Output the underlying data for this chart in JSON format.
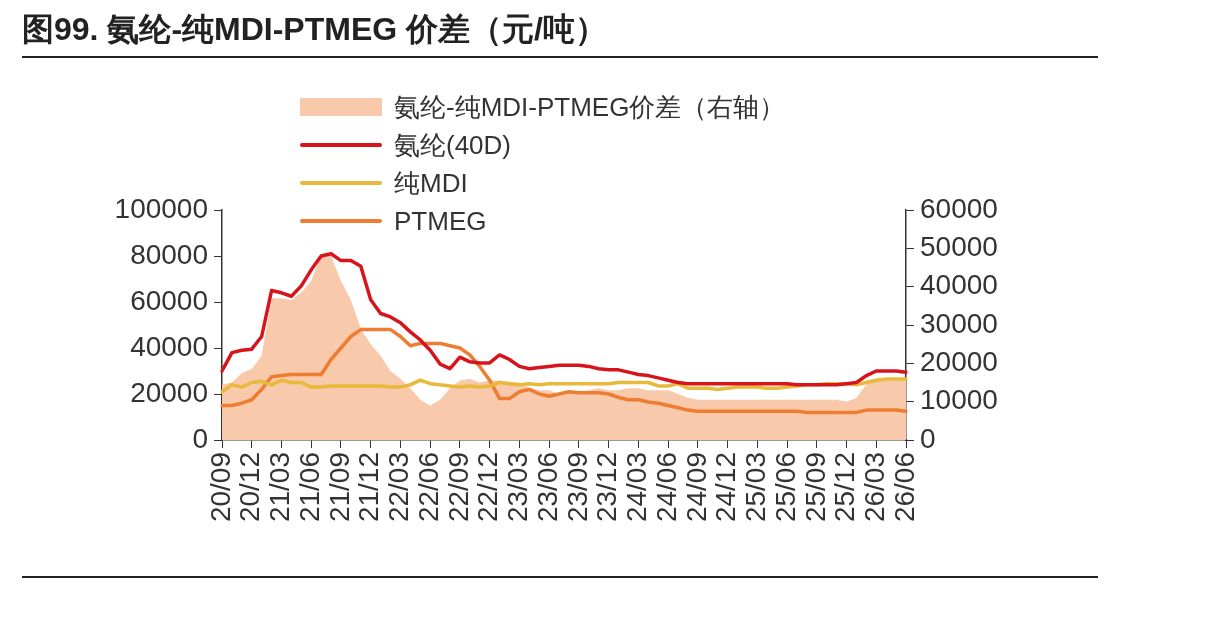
{
  "chart_data": {
    "type": "line",
    "title": "图99. 氨纶-纯MDI-PTMEG 价差（元/吨）",
    "categories": [
      "20/09",
      null,
      null,
      "20/12",
      null,
      null,
      "21/03",
      null,
      null,
      "21/06",
      null,
      null,
      "21/09",
      null,
      null,
      "21/12",
      null,
      null,
      "22/03",
      null,
      null,
      "22/06",
      null,
      null,
      "22/09",
      null,
      null,
      "22/12",
      null,
      null,
      "23/03",
      null,
      null,
      "23/06",
      null,
      null,
      "23/09",
      null,
      null,
      "23/12",
      null,
      null,
      "24/03",
      null,
      null,
      "24/06",
      null,
      null,
      "24/09",
      null,
      null,
      "24/12",
      null,
      null,
      "25/03",
      null,
      null,
      "25/06",
      null,
      null,
      "25/09",
      null,
      null,
      "25/12",
      null,
      null,
      "26/03",
      null,
      null,
      "26/06"
    ],
    "series": [
      {
        "name": "氨纶-纯MDI-PTMEG价差（右轴）",
        "type": "area",
        "axis": "y2",
        "color": "#f8c9ab",
        "values": [
          14500,
          15000,
          17500,
          18500,
          22000,
          37000,
          37000,
          36500,
          38500,
          41500,
          48500,
          48000,
          41500,
          36500,
          29000,
          25000,
          22000,
          18000,
          16000,
          13500,
          10500,
          9000,
          10500,
          13500,
          15500,
          16000,
          15000,
          15500,
          15500,
          15000,
          15000,
          13500,
          13000,
          13000,
          12000,
          12500,
          12500,
          13000,
          13500,
          13000,
          13000,
          13500,
          13500,
          13000,
          13000,
          13000,
          12000,
          11000,
          10500,
          10500,
          10500,
          10500,
          10500,
          10500,
          10500,
          10500,
          10500,
          10500,
          10500,
          10500,
          10500,
          10500,
          10500,
          10000,
          11000,
          14500,
          15500,
          16000,
          16000,
          16000
        ]
      },
      {
        "name": "氨纶(40D)",
        "type": "line",
        "color": "#d7141c",
        "values": [
          30000,
          38000,
          39000,
          39500,
          45000,
          65000,
          64000,
          62500,
          67000,
          74000,
          80000,
          81000,
          78000,
          78000,
          75500,
          61000,
          55000,
          53500,
          51000,
          47000,
          43500,
          39000,
          33000,
          31000,
          36000,
          34000,
          33500,
          33500,
          37000,
          35000,
          32000,
          31000,
          31500,
          32000,
          32500,
          32500,
          32500,
          32000,
          31000,
          30500,
          30500,
          29500,
          28500,
          28000,
          27000,
          26000,
          25000,
          24500,
          24500,
          24500,
          24500,
          24500,
          24500,
          24500,
          24500,
          24500,
          24500,
          24500,
          24000,
          24000,
          24000,
          24000,
          24000,
          24500,
          25000,
          28000,
          30000,
          30000,
          30000,
          29500
        ]
      },
      {
        "name": "纯MDI",
        "type": "line",
        "color": "#e8b93a",
        "values": [
          21000,
          24000,
          23000,
          25000,
          25500,
          24000,
          26000,
          25000,
          25000,
          23000,
          23000,
          23500,
          23500,
          23500,
          23500,
          23500,
          23500,
          23000,
          23000,
          24000,
          26000,
          24500,
          24000,
          23500,
          23000,
          23500,
          23000,
          23500,
          25000,
          24500,
          24000,
          24500,
          24000,
          24500,
          24500,
          24500,
          24500,
          24500,
          24500,
          24500,
          25000,
          25000,
          25000,
          25000,
          23500,
          23500,
          24500,
          22500,
          22500,
          22500,
          22000,
          22500,
          23000,
          23000,
          23000,
          22500,
          22500,
          23000,
          23500,
          24000,
          24000,
          24500,
          24500,
          24500,
          24000,
          25000,
          26000,
          26500,
          26500,
          26500
        ]
      },
      {
        "name": "PTMEG",
        "type": "line",
        "color": "#ee7d31",
        "values": [
          15000,
          15000,
          16000,
          17500,
          22000,
          27500,
          28000,
          28500,
          28500,
          28500,
          28500,
          35000,
          40000,
          45000,
          48000,
          48000,
          48000,
          48000,
          45000,
          41000,
          42000,
          42000,
          42000,
          41000,
          40000,
          37000,
          32000,
          26000,
          18000,
          18000,
          21000,
          22000,
          20000,
          19000,
          20000,
          21000,
          20500,
          20500,
          20500,
          20000,
          18500,
          17500,
          17500,
          16500,
          16000,
          15000,
          14000,
          13000,
          12500,
          12500,
          12500,
          12500,
          12500,
          12500,
          12500,
          12500,
          12500,
          12500,
          12500,
          12000,
          12000,
          12000,
          12000,
          12000,
          12000,
          13000,
          13000,
          13000,
          13000,
          12500
        ]
      }
    ],
    "ylim": [
      0,
      100000
    ],
    "yticks": [
      0,
      20000,
      40000,
      60000,
      80000,
      100000
    ],
    "y2lim": [
      0,
      60000
    ],
    "y2ticks": [
      0,
      10000,
      20000,
      30000,
      40000,
      50000,
      60000
    ],
    "legend": "top left",
    "grid": false,
    "line_style": "solid",
    "marker": "none"
  }
}
